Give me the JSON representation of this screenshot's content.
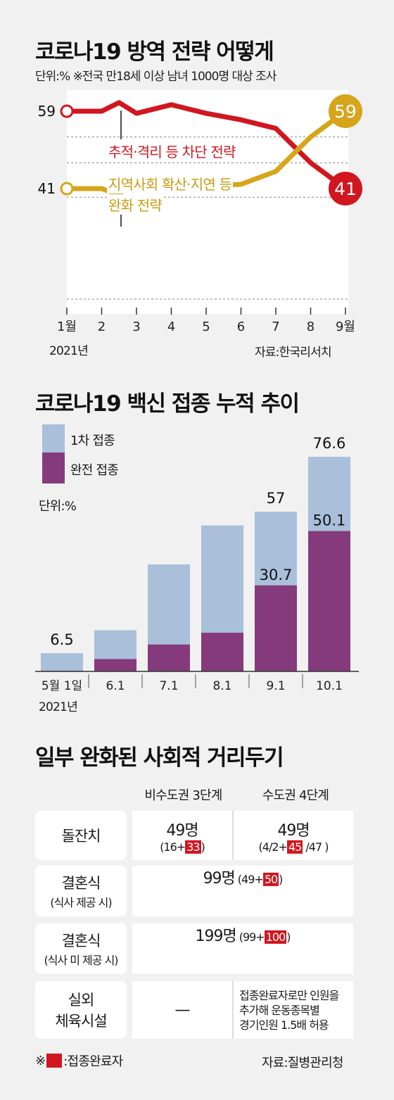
{
  "section1": {
    "title": "코로나19 방역 전략 어떻게",
    "unit_note": "단위:%  ※전국 만18세 이상 남녀 1000명 대상 조사",
    "source": "자료:한국리서치",
    "year_label": "2021년",
    "series_labels": {
      "red": "추적·격리 등 차단 전략",
      "gold_line1": "지역사회 확산·지연 등",
      "gold_line2": "완화 전략"
    }
  },
  "section2": {
    "title": "코로나19 백신 접종 누적 추이",
    "legend_first": "1차 접종",
    "legend_full": "완전 접종",
    "unit": "단위:%",
    "year_label": "2021년"
  },
  "section3": {
    "title": "일부 완화된 사회적 거리두기",
    "col1": "비수도권 3단계",
    "col2": "수도권 4단계",
    "rows": {
      "dol": {
        "label": "돌잔치",
        "v1_main": "49명",
        "v1_pre": "(16+",
        "v1_red": "33",
        "v1_post": ")",
        "v2_main": "49명",
        "v2_pre": "(4/2+",
        "v2_red": "45",
        "v2_post": " /47 )"
      },
      "wed1": {
        "label": "결혼식",
        "label_sub": "(식사 제공 시)",
        "main": "99명",
        "pre": "(49+",
        "red": "50",
        "post": ")"
      },
      "wed2": {
        "label": "결혼식",
        "label_sub": "(식사 미 제공 시)",
        "main": "199명",
        "pre": "(99+",
        "red": "100",
        "post": ")"
      },
      "gym": {
        "label_line1": "실외",
        "label_line2": "체육시설",
        "dash": "—",
        "note_line1": "접종완료자로만 인원을",
        "note_line2": "추가해 운동종목별",
        "note_line3": "경기인원 1.5배 허용"
      }
    },
    "footnote_prefix": "※",
    "footnote_text": ":접종완료자",
    "source": "자료:질병관리청"
  },
  "colors": {
    "red": "#d1161f",
    "gold": "#d6a51b",
    "light_blue": "#a9bfda",
    "purple": "#853a7c",
    "background": "#f1f1f1"
  },
  "chart_data": [
    {
      "type": "line",
      "title": "코로나19 방역 전략 어떻게",
      "x_labels": [
        "1월",
        "2",
        "3",
        "4",
        "5",
        "6",
        "7",
        "8",
        "9월"
      ],
      "x": [
        1,
        2,
        2.5,
        3,
        4,
        5,
        6,
        7,
        8,
        9
      ],
      "ylim": [
        35,
        65
      ],
      "series": [
        {
          "name": "추적·격리 등 차단 전략",
          "color": "#d1161f",
          "values": [
            59,
            59,
            61,
            58.5,
            60.5,
            58.5,
            57,
            55,
            47,
            41
          ],
          "start_label": "59",
          "end_label": "41"
        },
        {
          "name": "지역사회 확산·지연 등 완화 전략",
          "color": "#d6a51b",
          "values": [
            41,
            41,
            39.5,
            43.5,
            41,
            41.5,
            42,
            45,
            53,
            59
          ],
          "start_label": "41",
          "end_label": "59"
        }
      ],
      "grid": true
    },
    {
      "type": "bar",
      "title": "코로나19 백신 접종 누적 추이",
      "categories": [
        "5월 1일",
        "6.1",
        "7.1",
        "8.1",
        "9.1",
        "10.1"
      ],
      "series": [
        {
          "name": "1차 접종",
          "color": "#a9bfda",
          "values": [
            6.5,
            14.7,
            38.2,
            52.1,
            57,
            76.6
          ]
        },
        {
          "name": "완전 접종",
          "color": "#853a7c",
          "values": [
            0.2,
            4.4,
            9.6,
            13.8,
            30.7,
            50.1
          ]
        }
      ],
      "labels_first": [
        "6.5",
        "",
        "",
        "",
        "57",
        "76.6"
      ],
      "labels_full": [
        "",
        "",
        "",
        "",
        "30.7",
        "50.1"
      ],
      "ylim": [
        0,
        80
      ]
    }
  ]
}
